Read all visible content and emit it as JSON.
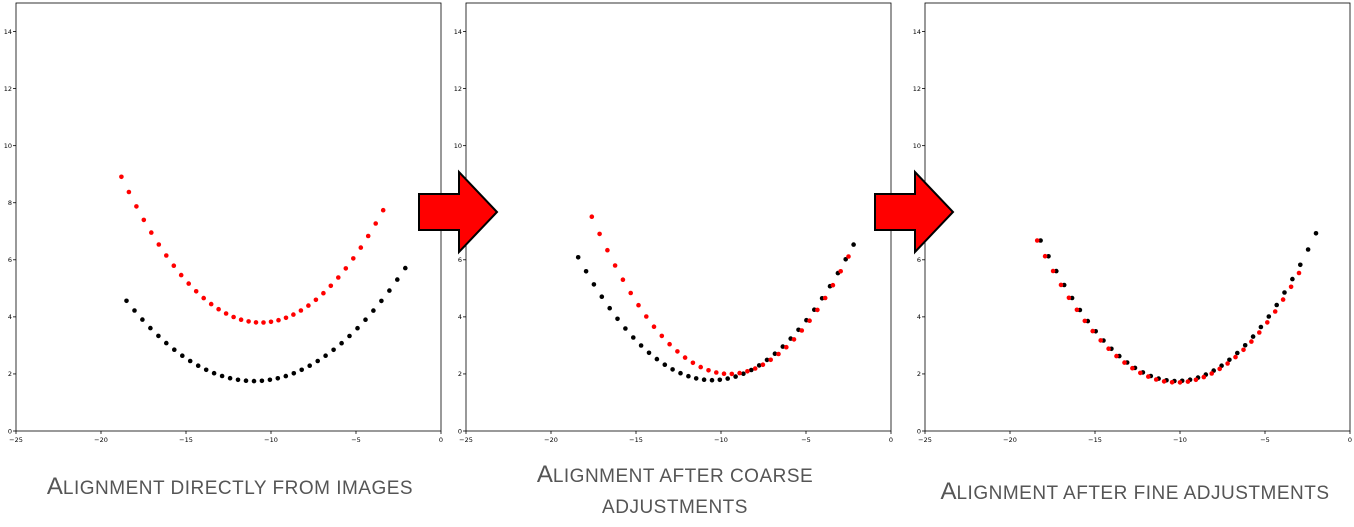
{
  "chart_data": [
    {
      "type": "scatter",
      "xlim": [
        -25,
        0
      ],
      "ylim": [
        0,
        15
      ],
      "xticks": [
        -25,
        -20,
        -15,
        -10,
        -5,
        0
      ],
      "yticks": [
        0,
        2,
        4,
        6,
        8,
        10,
        12,
        14
      ],
      "grid": false,
      "series": [
        {
          "color": "#000000",
          "vertex": [
            -11,
            1.75
          ],
          "k": 0.05,
          "xrange": [
            -18.5,
            -2.1
          ],
          "n": 36
        },
        {
          "color": "#ff0000",
          "vertex": [
            -10.6,
            3.8
          ],
          "k": 0.076,
          "xrange": [
            -18.8,
            -3.4
          ],
          "n": 36
        }
      ],
      "caption": {
        "cap_first": "A",
        "rest": "lignment directly from images"
      }
    },
    {
      "type": "scatter",
      "xlim": [
        -25,
        0
      ],
      "ylim": [
        0,
        15
      ],
      "xticks": [
        -25,
        -20,
        -15,
        -10,
        -5,
        0
      ],
      "yticks": [
        0,
        2,
        4,
        6,
        8,
        10,
        12,
        14
      ],
      "grid": false,
      "series": [
        {
          "color": "#000000",
          "vertex": [
            -10.5,
            1.78
          ],
          "k": 0.069,
          "xrange": [
            -18.4,
            -2.2
          ],
          "n": 36
        },
        {
          "color": "#ff0000",
          "vertex": [
            -9.5,
            2.0
          ],
          "k": 0.084,
          "xrange": [
            -17.6,
            -2.5
          ],
          "n": 34
        }
      ],
      "caption": {
        "cap_first": "A",
        "rest": "lignment after coarse",
        "rest2": "adjustments"
      }
    },
    {
      "type": "scatter",
      "xlim": [
        -25,
        0
      ],
      "ylim": [
        0,
        15
      ],
      "xticks": [
        -25,
        -20,
        -15,
        -10,
        -5,
        0
      ],
      "yticks": [
        0,
        2,
        4,
        6,
        8,
        10,
        12,
        14
      ],
      "grid": false,
      "series": [
        {
          "color": "#000000",
          "vertex": [
            -10.2,
            1.75
          ],
          "k": 0.077,
          "xrange": [
            -18.2,
            -2.0
          ],
          "n": 36
        },
        {
          "color": "#ff0000",
          "vertex": [
            -10.2,
            1.7
          ],
          "k": 0.074,
          "xrange": [
            -18.4,
            -3.0
          ],
          "n": 34
        }
      ],
      "caption": {
        "cap_first": "A",
        "rest": "lignment after fine adjustments"
      }
    }
  ],
  "arrow_color": "#ff0000"
}
